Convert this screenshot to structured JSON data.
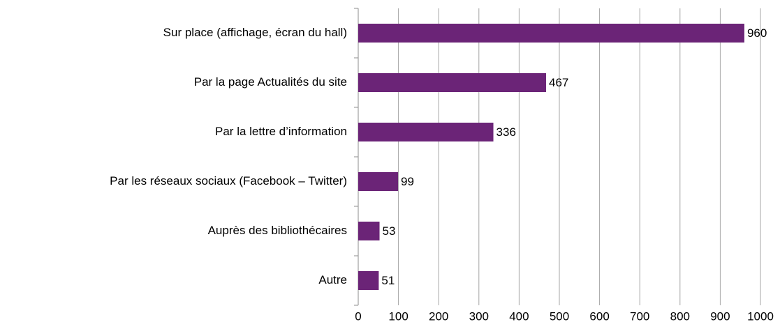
{
  "chart_data": {
    "type": "bar",
    "orientation": "horizontal",
    "categories": [
      "Sur place (affichage, écran du hall)",
      "Par la page Actualités du site",
      "Par la lettre d’information",
      "Par les réseaux sociaux (Facebook – Twitter)",
      "Auprès des bibliothécaires",
      "Autre"
    ],
    "values": [
      960,
      467,
      336,
      99,
      53,
      51
    ],
    "color": "#6b2477",
    "xlim": [
      0,
      1000
    ],
    "xticks": [
      0,
      100,
      200,
      300,
      400,
      500,
      600,
      700,
      800,
      900,
      1000
    ],
    "grid": true
  }
}
